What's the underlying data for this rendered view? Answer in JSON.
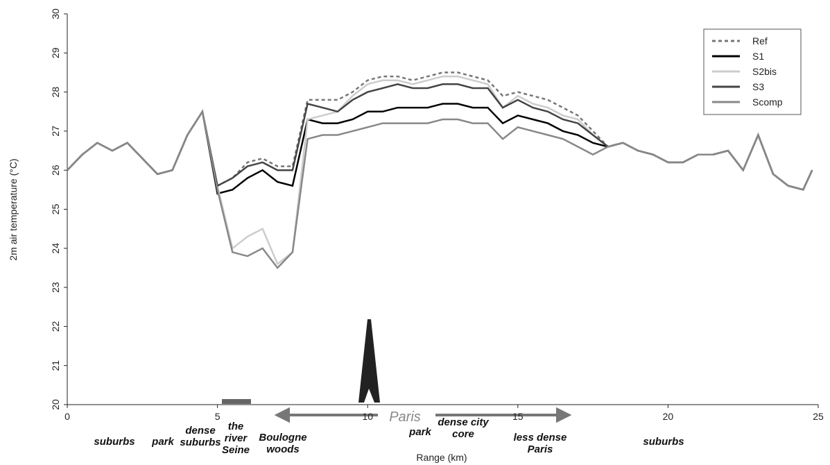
{
  "chart_data": {
    "type": "line",
    "y_label": "2m air temperature (°C)",
    "x_label": "Range (km)",
    "x": [
      0,
      0.5,
      1,
      1.5,
      2,
      2.5,
      3,
      3.5,
      4,
      4.5,
      5,
      5.5,
      6,
      6.5,
      7,
      7.5,
      8,
      8.5,
      9,
      9.5,
      10,
      10.5,
      11,
      11.5,
      12,
      12.5,
      13,
      13.5,
      14,
      14.5,
      15,
      15.5,
      16,
      16.5,
      17,
      17.5,
      18,
      18.5,
      19,
      19.5,
      20,
      20.5,
      21,
      21.5,
      22,
      22.5,
      23,
      23.5,
      24,
      24.5,
      24.8
    ],
    "series": [
      {
        "name": "Ref",
        "color": "#777777",
        "dash": true,
        "values": [
          26.0,
          26.4,
          26.7,
          26.5,
          26.7,
          26.3,
          25.9,
          26.0,
          26.9,
          27.5,
          25.6,
          25.8,
          26.2,
          26.3,
          26.1,
          26.1,
          27.8,
          27.8,
          27.8,
          28.0,
          28.3,
          28.4,
          28.4,
          28.3,
          28.4,
          28.5,
          28.5,
          28.4,
          28.3,
          27.9,
          28.0,
          27.9,
          27.8,
          27.6,
          27.4,
          27.0,
          26.6,
          26.7,
          26.5,
          26.4,
          26.2,
          26.2,
          26.4,
          26.4,
          26.5,
          26.0,
          26.9,
          25.9,
          25.6,
          25.5,
          26.0
        ]
      },
      {
        "name": "S1",
        "color": "#000000",
        "dash": false,
        "values": [
          26.0,
          26.4,
          26.7,
          26.5,
          26.7,
          26.3,
          25.9,
          26.0,
          26.9,
          27.5,
          25.4,
          25.5,
          25.8,
          26.0,
          25.7,
          25.6,
          27.3,
          27.2,
          27.2,
          27.3,
          27.5,
          27.5,
          27.6,
          27.6,
          27.6,
          27.7,
          27.7,
          27.6,
          27.6,
          27.2,
          27.4,
          27.3,
          27.2,
          27.0,
          26.9,
          26.7,
          26.6,
          26.7,
          26.5,
          26.4,
          26.2,
          26.2,
          26.4,
          26.4,
          26.5,
          26.0,
          26.9,
          25.9,
          25.6,
          25.5,
          26.0
        ]
      },
      {
        "name": "S2bis",
        "color": "#cccccc",
        "dash": false,
        "values": [
          26.0,
          26.4,
          26.7,
          26.5,
          26.7,
          26.3,
          25.9,
          26.0,
          26.9,
          27.5,
          25.6,
          24.0,
          24.3,
          24.5,
          23.6,
          23.9,
          27.3,
          27.4,
          27.5,
          27.9,
          28.2,
          28.3,
          28.3,
          28.2,
          28.3,
          28.4,
          28.4,
          28.3,
          28.2,
          27.6,
          27.9,
          27.7,
          27.6,
          27.4,
          27.3,
          26.9,
          26.6,
          26.7,
          26.5,
          26.4,
          26.2,
          26.2,
          26.4,
          26.4,
          26.5,
          26.0,
          26.9,
          25.9,
          25.6,
          25.5,
          26.0
        ]
      },
      {
        "name": "S3",
        "color": "#444444",
        "dash": false,
        "values": [
          26.0,
          26.4,
          26.7,
          26.5,
          26.7,
          26.3,
          25.9,
          26.0,
          26.9,
          27.5,
          25.6,
          25.8,
          26.1,
          26.2,
          26.0,
          26.0,
          27.7,
          27.6,
          27.5,
          27.8,
          28.0,
          28.1,
          28.2,
          28.1,
          28.1,
          28.2,
          28.2,
          28.1,
          28.1,
          27.6,
          27.8,
          27.6,
          27.5,
          27.3,
          27.2,
          26.9,
          26.6,
          26.7,
          26.5,
          26.4,
          26.2,
          26.2,
          26.4,
          26.4,
          26.5,
          26.0,
          26.9,
          25.9,
          25.6,
          25.5,
          26.0
        ]
      },
      {
        "name": "Scomp",
        "color": "#888888",
        "dash": false,
        "values": [
          26.0,
          26.4,
          26.7,
          26.5,
          26.7,
          26.3,
          25.9,
          26.0,
          26.9,
          27.5,
          25.5,
          23.9,
          23.8,
          24.0,
          23.5,
          23.9,
          26.8,
          26.9,
          26.9,
          27.0,
          27.1,
          27.2,
          27.2,
          27.2,
          27.2,
          27.3,
          27.3,
          27.2,
          27.2,
          26.8,
          27.1,
          27.0,
          26.9,
          26.8,
          26.6,
          26.4,
          26.6,
          26.7,
          26.5,
          26.4,
          26.2,
          26.2,
          26.4,
          26.4,
          26.5,
          26.0,
          26.9,
          25.9,
          25.6,
          25.5,
          26.0
        ]
      }
    ],
    "xlim": [
      0,
      25
    ],
    "xticks": [
      0,
      5,
      10,
      15,
      20,
      25
    ],
    "ylim": [
      20,
      30
    ],
    "yticks": [
      20,
      21,
      22,
      23,
      24,
      25,
      26,
      27,
      28,
      29,
      30
    ],
    "legend": "upper right",
    "annotations": [
      "suburbs",
      "park",
      "dense suburbs",
      "the river Seine",
      "Boulogne woods",
      "Paris",
      "park",
      "dense city core",
      "less dense Paris",
      "suburbs"
    ]
  }
}
